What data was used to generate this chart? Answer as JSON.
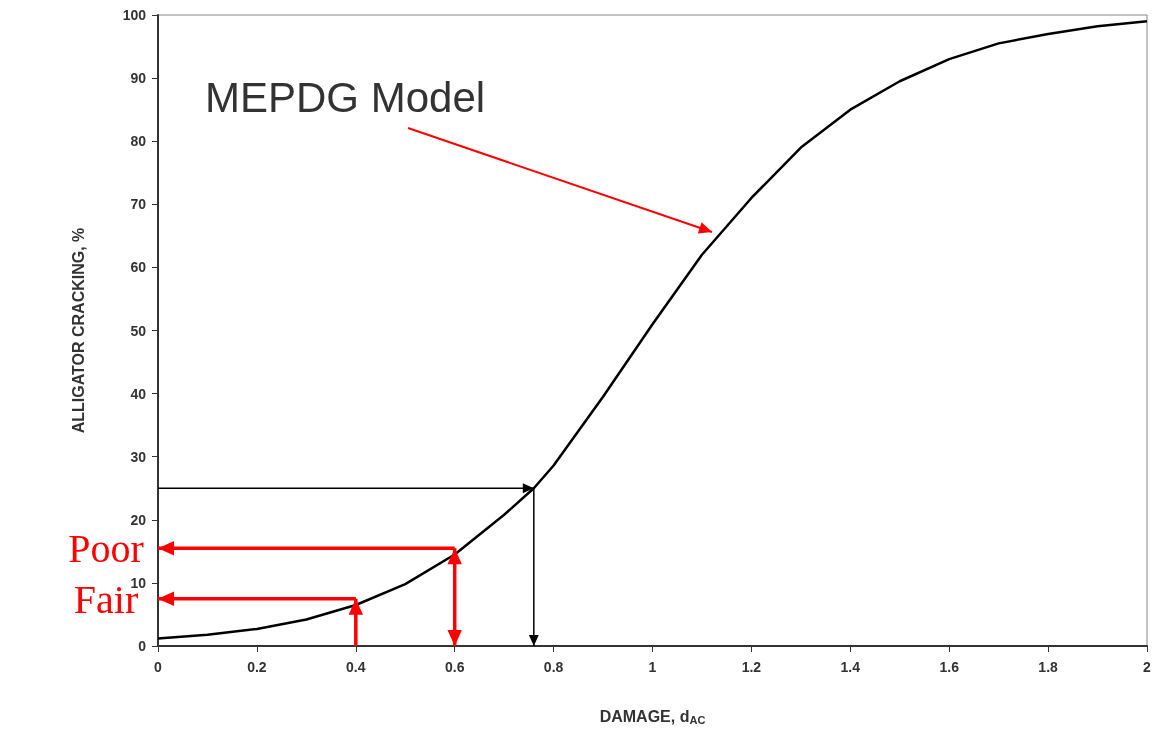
{
  "chart_data": {
    "type": "line",
    "xlabel": "DAMAGE, d$_{AC}$",
    "ylabel": "ALLIGATOR CRACKING, %",
    "xlim": [
      0,
      2
    ],
    "xticks": [
      0,
      0.2,
      0.4,
      0.6,
      0.8,
      1,
      1.2,
      1.4,
      1.6,
      1.8,
      2
    ],
    "ylim": [
      0,
      100
    ],
    "yticks": [
      0,
      10,
      20,
      30,
      40,
      50,
      60,
      70,
      80,
      90,
      100
    ],
    "series": [
      {
        "color": "#000000",
        "x": [
          0,
          0.1,
          0.2,
          0.3,
          0.4,
          0.5,
          0.6,
          0.7,
          0.76,
          0.8,
          0.9,
          1.0,
          1.1,
          1.2,
          1.3,
          1.4,
          1.5,
          1.6,
          1.7,
          1.8,
          1.9,
          2.0
        ],
        "values": [
          1.2,
          1.8,
          2.7,
          4.2,
          6.5,
          9.8,
          14.5,
          20.8,
          25,
          28.6,
          39.5,
          51,
          62,
          71,
          79,
          85,
          89.5,
          93,
          95.5,
          97,
          98.2,
          99
        ]
      }
    ],
    "ref_lines": [
      {
        "axis": "y",
        "value": 25,
        "color": "#000000"
      },
      {
        "axis": "x",
        "value": 0.76,
        "color": "#000000"
      }
    ],
    "annotations": [
      "MEPDG Model",
      {
        "text": "Poor",
        "x": 0.6,
        "y": 15.5
      },
      {
        "text": "Fair",
        "x": 0.4,
        "y": 7.5
      }
    ],
    "grid": false,
    "marker": "none",
    "line_style": "solid"
  }
}
